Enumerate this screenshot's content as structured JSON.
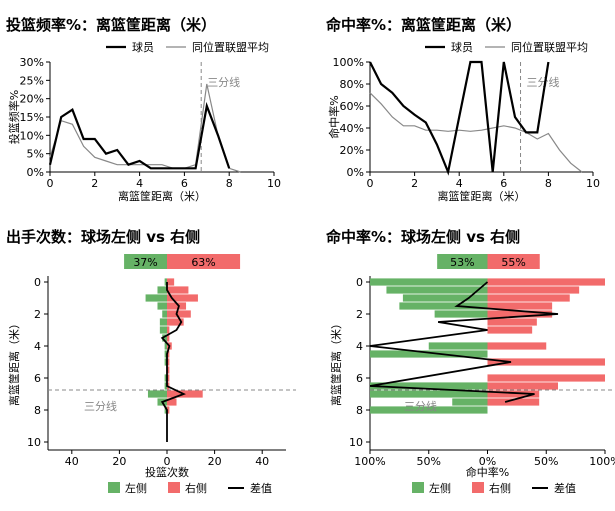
{
  "chart_data": [
    {
      "type": "line",
      "title": "投篮频率%：离篮筐距离（米）",
      "xlabel": "离篮筐距离（米）",
      "ylabel": "投篮频率%",
      "xlim": [
        0,
        10
      ],
      "ylim": [
        0,
        30
      ],
      "xticks": [
        "0",
        "2",
        "4",
        "6",
        "8",
        "10"
      ],
      "yticks": [
        "0%",
        "5%",
        "10%",
        "15%",
        "20%",
        "25%",
        "30%"
      ],
      "legend": [
        "球员",
        "同位置联盟平均"
      ],
      "annotation": "三分线",
      "three_point_line": 6.75,
      "series": [
        {
          "name": "球员",
          "color": "#000000",
          "x": [
            0,
            0.5,
            1,
            1.5,
            2,
            2.5,
            3,
            3.5,
            4,
            4.5,
            5,
            5.5,
            6,
            6.5,
            7,
            7.5,
            8
          ],
          "y": [
            2,
            15,
            17,
            9,
            9,
            5,
            6,
            2,
            3,
            1,
            1,
            1,
            1,
            1,
            18,
            10,
            1
          ]
        },
        {
          "name": "同位置联盟平均",
          "color": "#888888",
          "x": [
            0,
            0.5,
            1,
            1.5,
            2,
            2.5,
            3,
            3.5,
            4,
            4.5,
            5,
            5.5,
            6,
            6.5,
            7,
            7.5,
            8,
            8.5
          ],
          "y": [
            4,
            14,
            13,
            7,
            4,
            3,
            2,
            2,
            2,
            2,
            2,
            1,
            1,
            2,
            24,
            10,
            1,
            0
          ]
        }
      ]
    },
    {
      "type": "line",
      "title": "命中率%：离篮筐距离（米）",
      "xlabel": "离篮筐距离（米）",
      "ylabel": "命中率%",
      "xlim": [
        0,
        10
      ],
      "ylim": [
        0,
        100
      ],
      "xticks": [
        "0",
        "2",
        "4",
        "6",
        "8",
        "10"
      ],
      "yticks": [
        "0%",
        "20%",
        "40%",
        "60%",
        "80%",
        "100%"
      ],
      "legend": [
        "球员",
        "同位置联盟平均"
      ],
      "annotation": "三分线",
      "three_point_line": 6.75,
      "series": [
        {
          "name": "球员",
          "color": "#000000",
          "x": [
            0,
            0.5,
            1,
            1.5,
            2,
            2.5,
            3,
            3.5,
            4,
            4.5,
            5,
            5.5,
            6,
            6.5,
            7,
            7.5,
            8
          ],
          "y": [
            100,
            80,
            72,
            60,
            52,
            45,
            25,
            0,
            50,
            100,
            100,
            0,
            100,
            50,
            36,
            36,
            100
          ]
        },
        {
          "name": "同位置联盟平均",
          "color": "#888888",
          "x": [
            0,
            0.5,
            1,
            1.5,
            2,
            2.5,
            3,
            3.5,
            4,
            4.5,
            5,
            5.5,
            6,
            6.5,
            7,
            7.5,
            8,
            8.5,
            9,
            9.5
          ],
          "y": [
            72,
            62,
            50,
            42,
            42,
            38,
            38,
            37,
            38,
            37,
            38,
            40,
            42,
            40,
            36,
            30,
            35,
            20,
            8,
            0
          ]
        }
      ]
    },
    {
      "type": "bar",
      "title": "出手次数：球场左侧 vs 右侧",
      "xlabel": "投篮次数",
      "ylabel": "离篮筐距离（米）",
      "xlim": [
        -50,
        50
      ],
      "ylim": [
        0,
        10
      ],
      "xticks": [
        "40",
        "20",
        "0",
        "20",
        "40"
      ],
      "yticks": [
        "0",
        "2",
        "4",
        "6",
        "8",
        "10"
      ],
      "annotation": "三分线",
      "three_point_line": 6.75,
      "summary": {
        "left_pct": "37%",
        "right_pct": "63%",
        "left_value": 37,
        "right_value": 63
      },
      "legend": [
        "左侧",
        "右侧",
        "差值"
      ],
      "colors": {
        "left": "#66b266",
        "right": "#f26b6b",
        "diff": "#000000"
      },
      "y_bins": [
        0,
        0.5,
        1,
        1.5,
        2,
        2.5,
        3,
        3.5,
        4,
        4.5,
        5,
        5.5,
        6,
        6.5,
        7,
        7.5,
        8
      ],
      "left": [
        1,
        4,
        9,
        4,
        2,
        3,
        3,
        2,
        1,
        1,
        1,
        0,
        1,
        1,
        8,
        4,
        1
      ],
      "right": [
        3,
        9,
        13,
        8,
        10,
        7,
        1,
        1,
        2,
        1,
        1,
        1,
        1,
        1,
        15,
        4,
        1
      ],
      "diff_x": [
        0,
        0,
        2,
        5,
        4,
        6,
        4,
        -2,
        1,
        0,
        0,
        0,
        0,
        0,
        7,
        -2,
        0,
        0
      ],
      "diff_y": [
        0,
        0.5,
        1,
        1.5,
        2,
        2.5,
        3,
        3.5,
        4,
        4.5,
        5,
        5.5,
        6,
        6.5,
        7,
        7.5,
        8,
        10
      ]
    },
    {
      "type": "bar",
      "title": "命中率%：球场左侧 vs 右侧",
      "xlabel": "命中率%",
      "ylabel": "离篮筐距离（米）",
      "xlim": [
        -100,
        100
      ],
      "ylim": [
        0,
        10
      ],
      "xticks": [
        "100%",
        "50%",
        "0%",
        "50%",
        "100%"
      ],
      "yticks": [
        "0",
        "2",
        "4",
        "6",
        "8",
        "10"
      ],
      "annotation": "三分线",
      "three_point_line": 6.75,
      "summary": {
        "left_pct": "53%",
        "right_pct": "55%",
        "left_value": 53,
        "right_value": 55
      },
      "legend": [
        "左侧",
        "右侧",
        "差值"
      ],
      "colors": {
        "left": "#66b266",
        "right": "#f26b6b",
        "diff": "#000000"
      },
      "y_bins": [
        0,
        0.5,
        1,
        1.5,
        2,
        2.5,
        3,
        3.5,
        4,
        4.5,
        5,
        5.5,
        6,
        6.5,
        7,
        7.5,
        8
      ],
      "left": [
        100,
        86,
        72,
        75,
        45,
        0,
        0,
        0,
        50,
        100,
        0,
        0,
        0,
        100,
        100,
        30,
        100
      ],
      "right": [
        100,
        78,
        70,
        55,
        55,
        42,
        38,
        0,
        50,
        0,
        100,
        0,
        100,
        60,
        44,
        44,
        0
      ],
      "diff_x": [
        0,
        -8,
        -16,
        -26,
        60,
        -42,
        0,
        -100,
        20,
        -100,
        40,
        15
      ],
      "diff_y": [
        0,
        0.5,
        1,
        1.5,
        2,
        2.5,
        3,
        4,
        5,
        6.5,
        7,
        7.5
      ]
    }
  ]
}
